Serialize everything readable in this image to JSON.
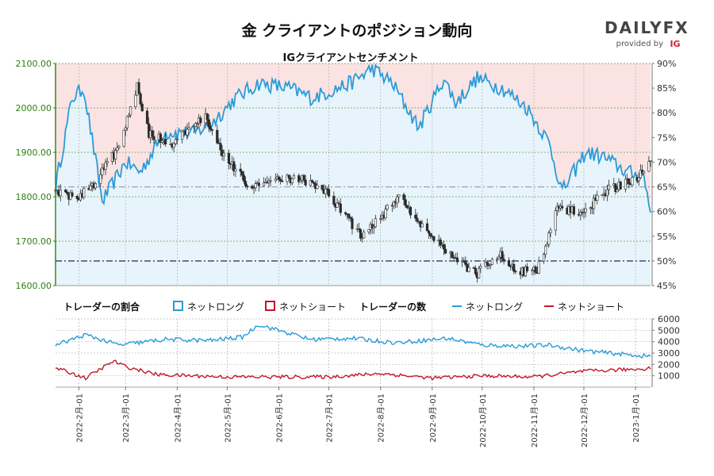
{
  "title": "金 クライアントのポジション動向",
  "brand": {
    "logo_text": "DAILYFX",
    "provided_by": "provided by",
    "ig": "IG"
  },
  "subtitle": "IGクライアントセンチメント",
  "legend": {
    "ratio_title": "トレーダーの割合",
    "count_title": "トレーダーの数",
    "net_long": "ネットロング",
    "net_short": "ネットショート"
  },
  "colors": {
    "long_line": "#2a9bd8",
    "long_fill": "#e8f4fb",
    "short_fill": "#fbe3e3",
    "short_line": "#c0182a",
    "candle": "#2b2b2b",
    "price_axis": "#2e7d12",
    "grid": "#9aa89a"
  },
  "chart_data": [
    {
      "type": "line",
      "name": "price-sentiment",
      "x_range": [
        "2022-01-18",
        "2023-01-10"
      ],
      "y_left": {
        "min": 1600,
        "max": 2100,
        "ticks": [
          "1600.00",
          "1700.00",
          "1800.00",
          "1900.00",
          "2000.00",
          "2100.00"
        ]
      },
      "y_right": {
        "min": 45,
        "max": 90,
        "ticks": [
          "45%",
          "50%",
          "55%",
          "60%",
          "65%",
          "70%",
          "75%",
          "80%",
          "85%",
          "90%"
        ]
      },
      "reference_lines": [
        50,
        65
      ],
      "price_series": {
        "dates": [
          "2022-01-18",
          "2022-01-31",
          "2022-02-10",
          "2022-02-24",
          "2022-03-08",
          "2022-03-15",
          "2022-03-29",
          "2022-04-18",
          "2022-04-29",
          "2022-05-16",
          "2022-05-31",
          "2022-06-14",
          "2022-06-30",
          "2022-07-21",
          "2022-08-12",
          "2022-09-01",
          "2022-09-27",
          "2022-10-13",
          "2022-10-21",
          "2022-11-03",
          "2022-11-15",
          "2022-12-01",
          "2022-12-13",
          "2023-01-03",
          "2023-01-10"
        ],
        "values": [
          1815,
          1795,
          1830,
          1905,
          2050,
          1940,
          1920,
          1980,
          1895,
          1815,
          1845,
          1840,
          1810,
          1710,
          1800,
          1710,
          1625,
          1670,
          1630,
          1635,
          1770,
          1765,
          1810,
          1845,
          1875
        ]
      },
      "net_long_pct": {
        "dates": [
          "2022-01-18",
          "2022-01-28",
          "2022-02-04",
          "2022-02-15",
          "2022-03-01",
          "2022-03-10",
          "2022-03-24",
          "2022-04-12",
          "2022-04-22",
          "2022-05-06",
          "2022-05-20",
          "2022-06-07",
          "2022-06-21",
          "2022-07-14",
          "2022-07-27",
          "2022-08-08",
          "2022-08-24",
          "2022-09-08",
          "2022-09-15",
          "2022-09-28",
          "2022-10-13",
          "2022-10-28",
          "2022-11-10",
          "2022-11-18",
          "2022-12-02",
          "2022-12-13",
          "2022-12-27",
          "2023-01-06",
          "2023-01-10"
        ],
        "values": [
          65,
          83,
          85,
          62,
          70,
          68,
          76,
          76,
          78,
          83,
          86,
          85,
          83,
          86,
          89,
          86,
          77,
          87,
          82,
          87,
          85,
          81,
          74,
          64,
          72,
          71,
          68,
          67,
          60
        ]
      }
    },
    {
      "type": "line",
      "name": "trader-counts",
      "y_right": {
        "min": 0,
        "max": 6000,
        "ticks": [
          "1000",
          "2000",
          "3000",
          "4000",
          "5000",
          "6000"
        ]
      },
      "x_ticks": [
        "2022-2月-01",
        "2022-3月-01",
        "2022-4月-01",
        "2022-5月-01",
        "2022-6月-01",
        "2022-7月-01",
        "2022-8月-01",
        "2022-9月-01",
        "2022-10月-01",
        "2022-11月-01",
        "2022-12月-01",
        "2023-1月-01"
      ],
      "series": [
        {
          "name": "ネットロング",
          "dates": [
            "2022-01-18",
            "2022-02-05",
            "2022-02-25",
            "2022-03-25",
            "2022-04-20",
            "2022-05-10",
            "2022-05-20",
            "2022-06-20",
            "2022-07-15",
            "2022-08-10",
            "2022-09-10",
            "2022-10-01",
            "2022-10-25",
            "2022-11-10",
            "2022-12-01",
            "2023-01-01",
            "2023-01-10"
          ],
          "values": [
            3700,
            4600,
            3700,
            4200,
            4100,
            4400,
            5500,
            4200,
            4300,
            3900,
            4300,
            3700,
            3600,
            3700,
            3200,
            2800,
            2700
          ]
        },
        {
          "name": "ネットショート",
          "dates": [
            "2022-01-18",
            "2022-02-05",
            "2022-02-22",
            "2022-03-01",
            "2022-03-20",
            "2022-05-01",
            "2022-07-01",
            "2022-08-01",
            "2022-09-01",
            "2022-10-01",
            "2022-11-01",
            "2022-12-01",
            "2023-01-05",
            "2023-01-10"
          ],
          "values": [
            1700,
            800,
            2300,
            1800,
            1100,
            900,
            900,
            1200,
            800,
            1000,
            900,
            1400,
            1600,
            1700
          ]
        }
      ]
    }
  ]
}
